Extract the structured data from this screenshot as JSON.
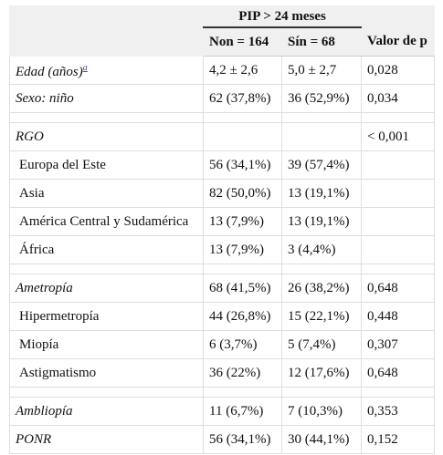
{
  "header": {
    "group": "PIP > 24 meses",
    "non": "Non = 164",
    "sin": "Sín = 68",
    "p": "Valor de p"
  },
  "sections": [
    {
      "rows": [
        {
          "label": "Edad (años)",
          "sup": "a",
          "italic": true,
          "non": "4,2 ± 2,6",
          "sin": "5,0 ± 2,7",
          "p": "0,028"
        },
        {
          "label": "Sexo: niño",
          "italic": true,
          "non": "62 (37,8%)",
          "sin": "36 (52,9%)",
          "p": "0,034"
        }
      ]
    },
    {
      "rows": [
        {
          "label": "RGO",
          "italic": true,
          "p": "< 0,001"
        },
        {
          "label": "Europa del Este",
          "non": "56 (34,1%)",
          "sin": "39 (57,4%)"
        },
        {
          "label": "Asia",
          "non": "82 (50,0%)",
          "sin": "13 (19,1%)"
        },
        {
          "label": "América Central y Sudamérica",
          "non": "13 (7,9%)",
          "sin": "13 (19,1%)"
        },
        {
          "label": "África",
          "non": "13 (7,9%)",
          "sin": "3 (4,4%)"
        }
      ]
    },
    {
      "rows": [
        {
          "label": "Ametropía",
          "italic": true,
          "non": "68 (41,5%)",
          "sin": "26 (38,2%)",
          "p": "0,648"
        },
        {
          "label": "Hipermetropía",
          "non": "44 (26,8%)",
          "sin": "15 (22,1%)",
          "p": "0,448"
        },
        {
          "label": "Miopía",
          "non": "6 (3,7%)",
          "sin": "5 (7,4%)",
          "p": "0,307"
        },
        {
          "label": "Astigmatismo",
          "non": "36 (22%)",
          "sin": "12 (17,6%)",
          "p": "0,648"
        }
      ]
    },
    {
      "rows": [
        {
          "label": "Ambliopía",
          "italic": true,
          "non": "11 (6,7%)",
          "sin": "7 (10,3%)",
          "p": "0,353"
        },
        {
          "label": "PONR",
          "italic": true,
          "non": "56 (34,1%)",
          "sin": "30 (44,1%)",
          "p": "0,152"
        }
      ]
    }
  ]
}
